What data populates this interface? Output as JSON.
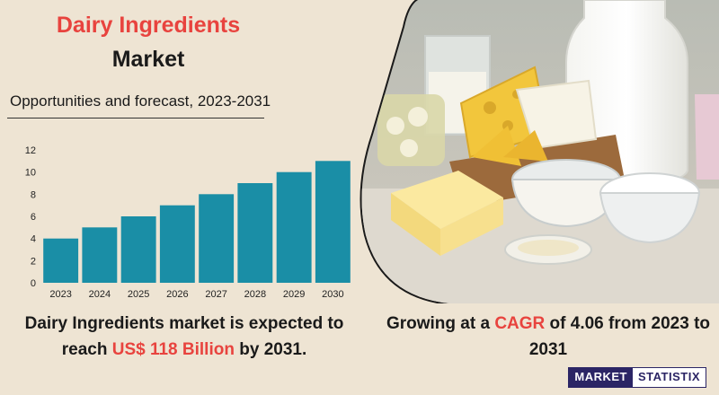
{
  "header": {
    "title_line1": "Dairy Ingredients",
    "title_line2": "Market",
    "subtitle": "Opportunities and forecast, 2023-2031"
  },
  "chart_data": {
    "type": "bar",
    "categories": [
      "2023",
      "2024",
      "2025",
      "2026",
      "2027",
      "2028",
      "2029",
      "2030"
    ],
    "values": [
      4,
      5,
      6,
      7,
      8,
      9,
      10,
      11
    ],
    "yticks": [
      0,
      2,
      4,
      6,
      8,
      10,
      12
    ],
    "ylim": [
      0,
      12
    ],
    "grid": false,
    "bar_color": "#1a8ea6"
  },
  "footer": {
    "desc_pre": "Dairy Ingredients market  is expected to reach ",
    "desc_highlight": "US$ 118 Billion",
    "desc_post": "  by 2031.",
    "growth_pre": "Growing at a ",
    "growth_highlight": "CAGR",
    "growth_post": " of 4.06 from 2023 to 2031"
  },
  "brand": {
    "part1": "MARKET",
    "part2": "STATISTIX"
  },
  "colors": {
    "accent": "#e8433e",
    "background": "#eee4d3",
    "brand": "#2b2565"
  },
  "image": {
    "subject": "dairy-products-photo"
  }
}
